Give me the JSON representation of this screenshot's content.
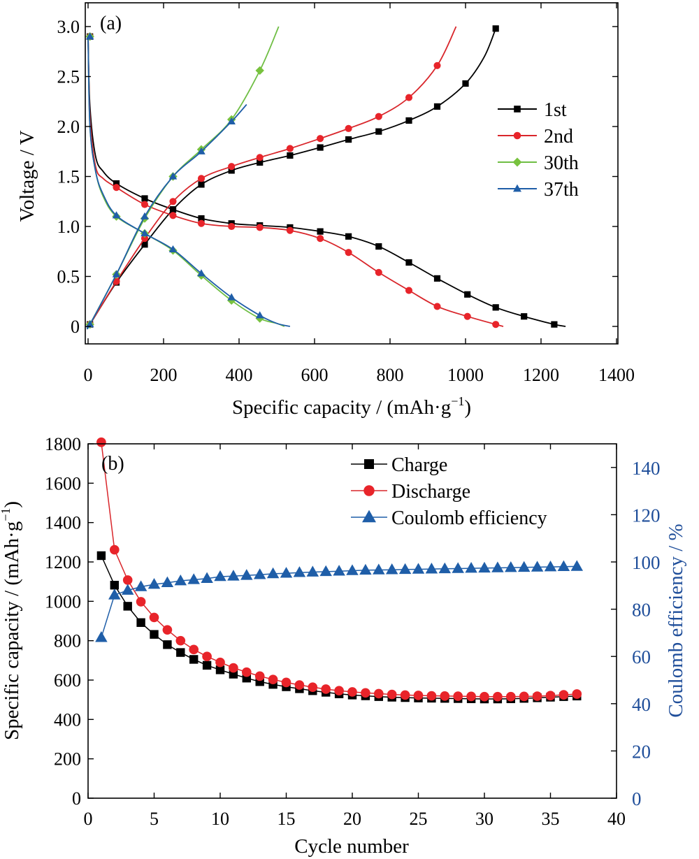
{
  "chart_data": [
    {
      "type": "line",
      "panel_label": "(a)",
      "xlabel_main": "Specific capacity / (mAh·g",
      "xlabel_sup": "−1",
      "xlabel_end": ")",
      "ylabel": "Voltage / V",
      "xlim": [
        0,
        1400
      ],
      "ylim": [
        0,
        3.0
      ],
      "xticks": [
        0,
        200,
        400,
        600,
        800,
        1000,
        1200,
        1400
      ],
      "yticks": [
        0,
        0.5,
        1.0,
        1.5,
        2.0,
        2.5,
        3.0
      ],
      "ytick_labels": [
        "0",
        "0.5",
        "1.0",
        "1.5",
        "2.0",
        "2.5",
        "3.0"
      ],
      "legend_position": "right",
      "marker_colors": [
        "#000000",
        "#e8242a",
        "#78c23e",
        "#1f5ea8"
      ],
      "line_colors": [
        "#000000",
        "#d9262b",
        "#6fbe44",
        "#1f5ea8"
      ],
      "markers": [
        "square",
        "circle",
        "diamond",
        "triangle"
      ],
      "series": [
        {
          "name": "1st",
          "discharge": [
            [
              0,
              2.9
            ],
            [
              5,
              2.2
            ],
            [
              20,
              1.7
            ],
            [
              40,
              1.55
            ],
            [
              75,
              1.43
            ],
            [
              150,
              1.28
            ],
            [
              225,
              1.17
            ],
            [
              300,
              1.08
            ],
            [
              380,
              1.03
            ],
            [
              455,
              1.01
            ],
            [
              535,
              0.99
            ],
            [
              615,
              0.95
            ],
            [
              690,
              0.9
            ],
            [
              770,
              0.8
            ],
            [
              850,
              0.64
            ],
            [
              925,
              0.48
            ],
            [
              1005,
              0.32
            ],
            [
              1080,
              0.19
            ],
            [
              1155,
              0.1
            ],
            [
              1235,
              0.02
            ],
            [
              1265,
              0.0
            ]
          ],
          "discharge_markers": [
            [
              5,
              2.9
            ],
            [
              75,
              1.43
            ],
            [
              150,
              1.28
            ],
            [
              225,
              1.17
            ],
            [
              300,
              1.08
            ],
            [
              380,
              1.03
            ],
            [
              455,
              1.01
            ],
            [
              535,
              0.99
            ],
            [
              615,
              0.95
            ],
            [
              690,
              0.9
            ],
            [
              770,
              0.8
            ],
            [
              850,
              0.64
            ],
            [
              925,
              0.48
            ],
            [
              1005,
              0.32
            ],
            [
              1080,
              0.19
            ],
            [
              1155,
              0.1
            ],
            [
              1235,
              0.02
            ]
          ],
          "charge": [
            [
              0,
              0.0
            ],
            [
              5,
              0.02
            ],
            [
              75,
              0.44
            ],
            [
              150,
              0.82
            ],
            [
              225,
              1.17
            ],
            [
              300,
              1.42
            ],
            [
              380,
              1.56
            ],
            [
              455,
              1.64
            ],
            [
              535,
              1.71
            ],
            [
              615,
              1.79
            ],
            [
              690,
              1.87
            ],
            [
              770,
              1.95
            ],
            [
              850,
              2.06
            ],
            [
              925,
              2.2
            ],
            [
              1000,
              2.43
            ],
            [
              1050,
              2.7
            ],
            [
              1080,
              2.98
            ]
          ],
          "charge_markers": [
            [
              5,
              0.02
            ],
            [
              75,
              0.44
            ],
            [
              150,
              0.82
            ],
            [
              225,
              1.17
            ],
            [
              300,
              1.42
            ],
            [
              380,
              1.56
            ],
            [
              455,
              1.64
            ],
            [
              535,
              1.71
            ],
            [
              615,
              1.79
            ],
            [
              690,
              1.87
            ],
            [
              770,
              1.95
            ],
            [
              850,
              2.06
            ],
            [
              925,
              2.2
            ],
            [
              1000,
              2.43
            ],
            [
              1080,
              2.98
            ]
          ]
        },
        {
          "name": "2nd",
          "discharge": [
            [
              0,
              2.9
            ],
            [
              5,
              2.1
            ],
            [
              20,
              1.6
            ],
            [
              40,
              1.48
            ],
            [
              75,
              1.39
            ],
            [
              150,
              1.22
            ],
            [
              225,
              1.11
            ],
            [
              300,
              1.03
            ],
            [
              380,
              1.0
            ],
            [
              455,
              0.99
            ],
            [
              535,
              0.96
            ],
            [
              615,
              0.88
            ],
            [
              690,
              0.74
            ],
            [
              770,
              0.54
            ],
            [
              850,
              0.36
            ],
            [
              925,
              0.2
            ],
            [
              1005,
              0.1
            ],
            [
              1080,
              0.02
            ],
            [
              1100,
              0.0
            ]
          ],
          "discharge_markers": [
            [
              5,
              2.9
            ],
            [
              75,
              1.39
            ],
            [
              150,
              1.22
            ],
            [
              225,
              1.11
            ],
            [
              300,
              1.03
            ],
            [
              380,
              1.0
            ],
            [
              455,
              0.99
            ],
            [
              535,
              0.96
            ],
            [
              615,
              0.88
            ],
            [
              690,
              0.74
            ],
            [
              770,
              0.54
            ],
            [
              850,
              0.36
            ],
            [
              925,
              0.2
            ],
            [
              1005,
              0.1
            ],
            [
              1080,
              0.02
            ]
          ],
          "charge": [
            [
              0,
              0.0
            ],
            [
              5,
              0.02
            ],
            [
              75,
              0.45
            ],
            [
              150,
              0.88
            ],
            [
              225,
              1.25
            ],
            [
              300,
              1.48
            ],
            [
              380,
              1.6
            ],
            [
              455,
              1.69
            ],
            [
              535,
              1.78
            ],
            [
              615,
              1.88
            ],
            [
              690,
              1.98
            ],
            [
              770,
              2.1
            ],
            [
              850,
              2.29
            ],
            [
              925,
              2.61
            ],
            [
              975,
              3.0
            ]
          ],
          "charge_markers": [
            [
              5,
              0.02
            ],
            [
              75,
              0.45
            ],
            [
              150,
              0.88
            ],
            [
              225,
              1.25
            ],
            [
              300,
              1.48
            ],
            [
              380,
              1.6
            ],
            [
              455,
              1.69
            ],
            [
              535,
              1.78
            ],
            [
              615,
              1.88
            ],
            [
              690,
              1.98
            ],
            [
              770,
              2.1
            ],
            [
              850,
              2.29
            ],
            [
              925,
              2.61
            ]
          ]
        },
        {
          "name": "30th",
          "discharge": [
            [
              0,
              2.9
            ],
            [
              5,
              2.0
            ],
            [
              20,
              1.55
            ],
            [
              40,
              1.3
            ],
            [
              75,
              1.1
            ],
            [
              150,
              0.93
            ],
            [
              225,
              0.76
            ],
            [
              300,
              0.51
            ],
            [
              380,
              0.26
            ],
            [
              455,
              0.08
            ],
            [
              500,
              0.03
            ],
            [
              520,
              0.0
            ]
          ],
          "discharge_markers": [
            [
              5,
              2.9
            ],
            [
              75,
              1.1
            ],
            [
              150,
              0.93
            ],
            [
              225,
              0.76
            ],
            [
              300,
              0.51
            ],
            [
              380,
              0.26
            ],
            [
              455,
              0.08
            ]
          ],
          "charge": [
            [
              0,
              0.0
            ],
            [
              5,
              0.02
            ],
            [
              75,
              0.52
            ],
            [
              150,
              1.08
            ],
            [
              225,
              1.5
            ],
            [
              300,
              1.77
            ],
            [
              380,
              2.07
            ],
            [
              455,
              2.56
            ],
            [
              505,
              3.0
            ]
          ],
          "charge_markers": [
            [
              5,
              0.02
            ],
            [
              75,
              0.52
            ],
            [
              150,
              1.08
            ],
            [
              225,
              1.5
            ],
            [
              300,
              1.77
            ],
            [
              380,
              2.07
            ],
            [
              455,
              2.56
            ]
          ]
        },
        {
          "name": "37th",
          "discharge": [
            [
              0,
              2.9
            ],
            [
              5,
              2.0
            ],
            [
              20,
              1.55
            ],
            [
              40,
              1.32
            ],
            [
              75,
              1.11
            ],
            [
              150,
              0.93
            ],
            [
              225,
              0.77
            ],
            [
              300,
              0.53
            ],
            [
              380,
              0.29
            ],
            [
              455,
              0.11
            ],
            [
              500,
              0.03
            ],
            [
              535,
              0.0
            ]
          ],
          "discharge_markers": [
            [
              5,
              2.9
            ],
            [
              75,
              1.11
            ],
            [
              150,
              0.93
            ],
            [
              225,
              0.77
            ],
            [
              300,
              0.53
            ],
            [
              380,
              0.29
            ],
            [
              455,
              0.11
            ]
          ],
          "charge": [
            [
              0,
              0.0
            ],
            [
              5,
              0.02
            ],
            [
              75,
              0.52
            ],
            [
              150,
              1.1
            ],
            [
              225,
              1.5
            ],
            [
              300,
              1.75
            ],
            [
              380,
              2.05
            ],
            [
              420,
              2.22
            ]
          ],
          "charge_markers": [
            [
              5,
              0.02
            ],
            [
              75,
              0.52
            ],
            [
              150,
              1.1
            ],
            [
              225,
              1.5
            ],
            [
              300,
              1.75
            ],
            [
              380,
              2.05
            ]
          ]
        }
      ]
    },
    {
      "type": "scatter",
      "panel_label": "(b)",
      "xlabel": "Cycle number",
      "ylabel_main": "Specific capacity / (mAh·g",
      "ylabel_sup": "−1",
      "ylabel_end": ")",
      "y2label": "Coulomb efficiency / %",
      "xlim": [
        0,
        40
      ],
      "ylim": [
        0,
        1800
      ],
      "y2lim": [
        0,
        150
      ],
      "xticks": [
        0,
        5,
        10,
        15,
        20,
        25,
        30,
        35,
        40
      ],
      "yticks": [
        0,
        200,
        400,
        600,
        800,
        1000,
        1200,
        1400,
        1600,
        1800
      ],
      "y2ticks": [
        0,
        20,
        40,
        60,
        80,
        100,
        120,
        140
      ],
      "legend_position": "top-right",
      "y2_color": "#1f4e9a",
      "x": [
        1,
        2,
        3,
        4,
        5,
        6,
        7,
        8,
        9,
        10,
        11,
        12,
        13,
        14,
        15,
        16,
        17,
        18,
        19,
        20,
        21,
        22,
        23,
        24,
        25,
        26,
        27,
        28,
        29,
        30,
        31,
        32,
        33,
        34,
        35,
        36,
        37
      ],
      "series": [
        {
          "name": "Charge",
          "axis": "left",
          "marker": "square",
          "color": "#000000",
          "line_color": "#000000",
          "values": [
            1232,
            1082,
            975,
            892,
            832,
            780,
            740,
            705,
            675,
            652,
            630,
            610,
            592,
            578,
            566,
            556,
            546,
            538,
            530,
            524,
            520,
            516,
            513,
            511,
            509,
            508,
            507,
            506,
            505,
            504,
            504,
            505,
            507,
            510,
            513,
            516,
            519
          ]
        },
        {
          "name": "Discharge",
          "axis": "left",
          "marker": "circle",
          "color": "#e8242a",
          "line_color": "#d9262b",
          "values": [
            1808,
            1262,
            1108,
            998,
            918,
            855,
            800,
            755,
            720,
            690,
            662,
            640,
            620,
            603,
            588,
            575,
            564,
            554,
            546,
            540,
            535,
            531,
            527,
            524,
            522,
            520,
            519,
            518,
            517,
            516,
            516,
            516,
            517,
            518,
            521,
            525,
            529
          ]
        },
        {
          "name": "Coulomb efficiency",
          "axis": "right",
          "marker": "triangle",
          "color": "#1f5ea8",
          "line_color": "#1f5ea8",
          "values": [
            68,
            86,
            88,
            89.5,
            90.5,
            91.2,
            92,
            92.5,
            93,
            93.8,
            94,
            94.3,
            94.6,
            95,
            95.2,
            95.5,
            95.7,
            95.9,
            96.1,
            96.3,
            96.5,
            96.6,
            96.7,
            96.8,
            96.9,
            97,
            97.1,
            97.2,
            97.3,
            97.4,
            97.5,
            97.6,
            97.7,
            97.8,
            97.9,
            98,
            98.1
          ]
        }
      ]
    }
  ]
}
